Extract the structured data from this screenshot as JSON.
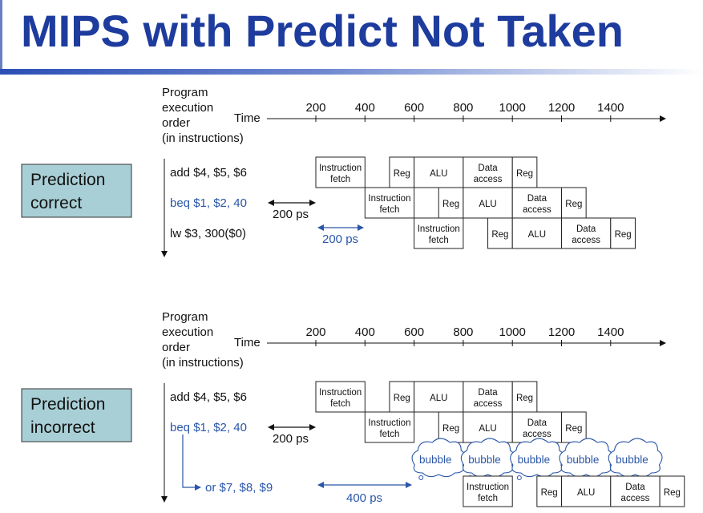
{
  "title": "MIPS with Predict Not Taken",
  "axis": {
    "order_label": [
      "Program",
      "execution",
      "order",
      "(in instructions)"
    ],
    "time_label": "Time",
    "ticks": [
      "200",
      "400",
      "600",
      "800",
      "1000",
      "1200",
      "1400"
    ]
  },
  "stages": {
    "if": [
      "Instruction",
      "fetch"
    ],
    "reg": "Reg",
    "alu": "ALU",
    "mem": [
      "Data",
      "access"
    ]
  },
  "top": {
    "prediction": [
      "Prediction",
      "correct"
    ],
    "instructions": [
      "add $4, $5, $6",
      "beq $1, $2, 40",
      "lw  $3, 300($0)"
    ],
    "delay1": "200 ps",
    "delay2": "200 ps"
  },
  "bottom": {
    "prediction": [
      "Prediction",
      "incorrect"
    ],
    "instructions": [
      "add $4, $5, $6",
      "beq $1, $2, 40",
      "or $7, $8, $9"
    ],
    "delay1": "200 ps",
    "delay2": "400 ps",
    "bubble": "bubble"
  },
  "colors": {
    "title": "#1e3c9e",
    "prediction_box": "#a9cfd6",
    "highlight_text": "#2a56a8"
  }
}
